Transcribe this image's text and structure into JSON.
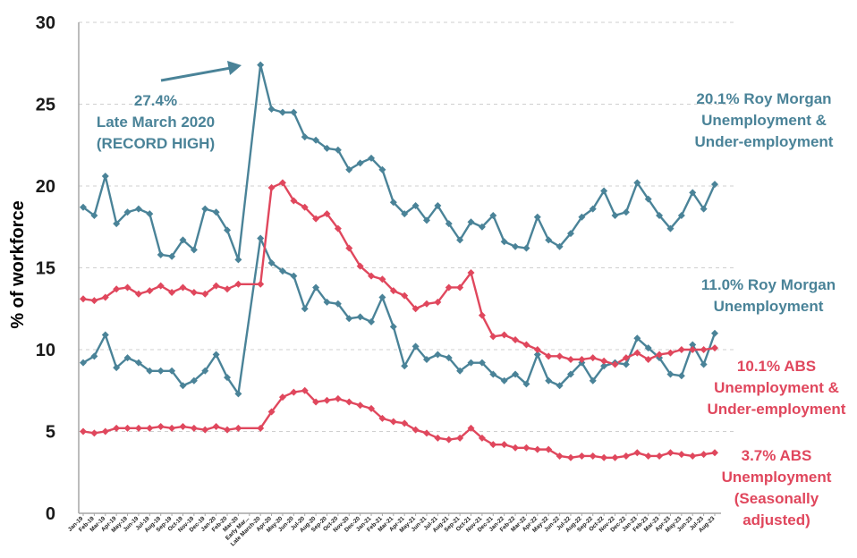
{
  "chart_data": {
    "type": "line",
    "ylabel": "% of workforce",
    "ylim": [
      0,
      30
    ],
    "yticks": [
      0,
      5,
      10,
      15,
      20,
      25,
      30
    ],
    "grid": "horizontal dashed",
    "legend": "none (series labelled directly on the right)",
    "colors": {
      "roy_morgan": "#4a8398",
      "abs": "#e0475d",
      "axis": "#a6a6a6"
    },
    "categories": [
      "Jan-19",
      "Feb-19",
      "Mar-19",
      "Apr-19",
      "May-19",
      "Jun-19",
      "Jul-19",
      "Aug-19",
      "Sep-19",
      "Oct-19",
      "Nov-19",
      "Dec-19",
      "Jan-20",
      "Feb-20",
      "Mar-20",
      "Early Mar...",
      "Late March-20",
      "Apr-20",
      "May-20",
      "Jun-20",
      "Jul-20",
      "Aug-20",
      "Sep-20",
      "Oct-20",
      "Nov-20",
      "Dec-20",
      "Jan-21",
      "Feb-21",
      "Mar-21",
      "Apr-21",
      "May-21",
      "Jun-21",
      "Jul-21",
      "Aug-21",
      "Sep-21",
      "Oct-21",
      "Nov-21",
      "Dec-21",
      "Jan-22",
      "Feb-22",
      "Mar-22",
      "Apr-22",
      "May-22",
      "Jun-22",
      "Jul-22",
      "Aug-22",
      "Sep-22",
      "Oct-22",
      "Nov-22",
      "Dec-22",
      "Jan-23",
      "Feb-23",
      "Mar-23",
      "Apr-23",
      "May-23",
      "Jun-23",
      "Jul-23",
      "Aug-23"
    ],
    "series": [
      {
        "color": "#4a8398",
        "values": [
          18.7,
          18.2,
          20.6,
          17.7,
          18.4,
          18.6,
          18.3,
          15.8,
          15.7,
          16.7,
          16.1,
          18.6,
          18.4,
          17.3,
          15.5,
          null,
          27.4,
          24.7,
          24.5,
          24.5,
          23.0,
          22.8,
          22.3,
          22.2,
          21.0,
          21.4,
          21.7,
          21.0,
          19.0,
          18.3,
          18.8,
          17.9,
          18.8,
          17.7,
          16.7,
          17.8,
          17.5,
          18.2,
          16.6,
          16.3,
          16.2,
          18.1,
          16.7,
          16.3,
          17.1,
          18.1,
          18.6,
          19.7,
          18.2,
          18.4,
          20.2,
          19.2,
          18.2,
          17.4,
          18.2,
          19.6,
          18.6,
          20.1
        ]
      },
      {
        "color": "#4a8398",
        "values": [
          9.2,
          9.6,
          10.9,
          8.9,
          9.5,
          9.2,
          8.7,
          8.7,
          8.7,
          7.8,
          8.1,
          8.7,
          9.7,
          8.3,
          7.3,
          null,
          16.8,
          15.3,
          14.8,
          14.5,
          12.5,
          13.8,
          12.9,
          12.8,
          11.9,
          12.0,
          11.7,
          13.2,
          11.4,
          9.0,
          10.2,
          9.4,
          9.7,
          9.5,
          8.7,
          9.2,
          9.2,
          8.5,
          8.1,
          8.5,
          7.9,
          9.7,
          8.1,
          7.8,
          8.5,
          9.2,
          8.1,
          9.0,
          9.2,
          9.1,
          10.7,
          10.1,
          9.5,
          8.5,
          8.4,
          10.3,
          9.1,
          11.0
        ]
      },
      {
        "color": "#e0475d",
        "values": [
          13.1,
          13.0,
          13.2,
          13.7,
          13.8,
          13.4,
          13.6,
          13.9,
          13.5,
          13.8,
          13.5,
          13.4,
          13.9,
          13.7,
          14.0,
          null,
          14.0,
          19.9,
          20.2,
          19.1,
          18.7,
          18.0,
          18.3,
          17.4,
          16.2,
          15.1,
          14.5,
          14.3,
          13.6,
          13.3,
          12.5,
          12.8,
          12.9,
          13.8,
          13.8,
          14.7,
          12.1,
          10.8,
          10.9,
          10.6,
          10.3,
          10.0,
          9.6,
          9.6,
          9.4,
          9.4,
          9.5,
          9.3,
          9.1,
          9.5,
          9.8,
          9.4,
          9.7,
          9.8,
          10.0,
          10.0,
          10.0,
          10.1
        ]
      },
      {
        "color": "#e0475d",
        "values": [
          5.0,
          4.9,
          5.0,
          5.2,
          5.2,
          5.2,
          5.2,
          5.3,
          5.2,
          5.3,
          5.2,
          5.1,
          5.3,
          5.1,
          5.2,
          null,
          5.2,
          6.2,
          7.1,
          7.4,
          7.5,
          6.8,
          6.9,
          7.0,
          6.8,
          6.6,
          6.4,
          5.8,
          5.6,
          5.5,
          5.1,
          4.9,
          4.6,
          4.5,
          4.6,
          5.2,
          4.6,
          4.2,
          4.2,
          4.0,
          4.0,
          3.9,
          3.9,
          3.5,
          3.4,
          3.5,
          3.5,
          3.4,
          3.4,
          3.5,
          3.7,
          3.5,
          3.5,
          3.7,
          3.6,
          3.5,
          3.6,
          3.7
        ]
      }
    ],
    "annotations": {
      "record": [
        "27.4%",
        "Late March 2020",
        "(RECORD HIGH)"
      ],
      "rm_under": [
        "20.1% Roy Morgan",
        "Unemployment &",
        "Under-employment"
      ],
      "rm_unemp": [
        "11.0% Roy Morgan",
        "Unemployment"
      ],
      "abs_under": [
        "10.1% ABS",
        "Unemployment &",
        "Under-employment"
      ],
      "abs_unemp": [
        "3.7% ABS",
        "Unemployment",
        "(Seasonally",
        "adjusted)"
      ]
    }
  }
}
